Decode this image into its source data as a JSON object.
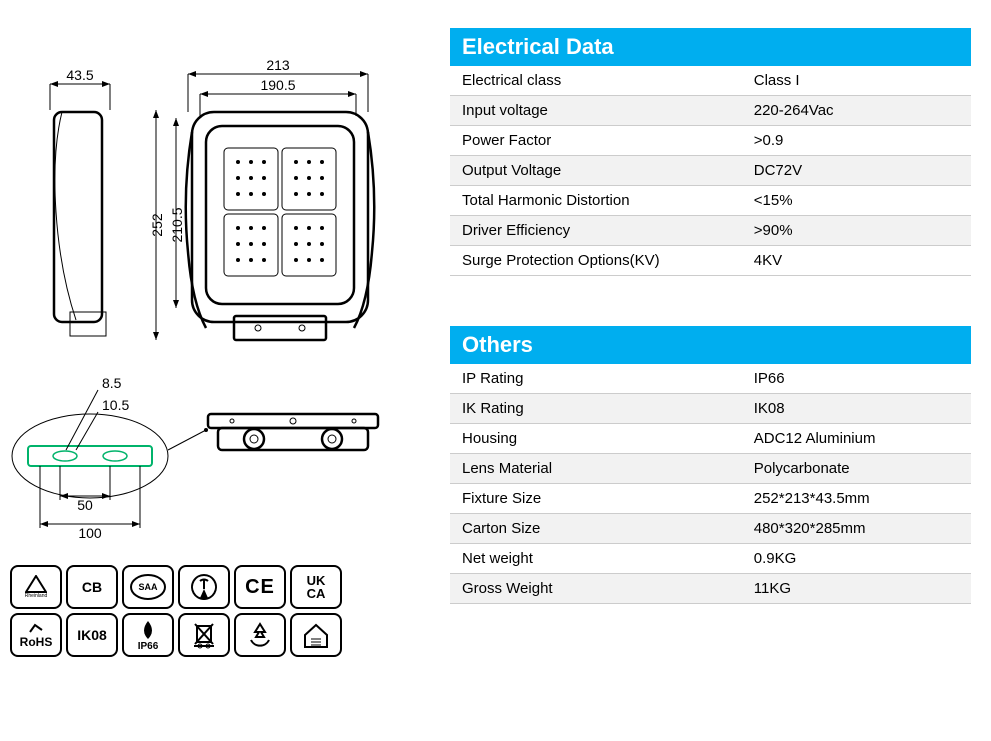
{
  "tables": {
    "electrical": {
      "title": "Electrical Data",
      "rows": [
        {
          "label": "Electrical class",
          "value": "Class I"
        },
        {
          "label": "Input voltage",
          "value": "220-264Vac"
        },
        {
          "label": "Power Factor",
          "value": ">0.9"
        },
        {
          "label": "Output Voltage",
          "value": "DC72V"
        },
        {
          "label": "Total Harmonic Distortion",
          "value": "<15%"
        },
        {
          "label": "Driver Efficiency",
          "value": ">90%"
        },
        {
          "label": "Surge Protection Options(KV)",
          "value": "4KV"
        }
      ]
    },
    "others": {
      "title": "Others",
      "rows": [
        {
          "label": "IP Rating",
          "value": "IP66"
        },
        {
          "label": "IK Rating",
          "value": "IK08"
        },
        {
          "label": "Housing",
          "value": "ADC12 Aluminium"
        },
        {
          "label": "Lens Material",
          "value": "Polycarbonate"
        },
        {
          "label": "Fixture Size",
          "value": "252*213*43.5mm"
        },
        {
          "label": "Carton Size",
          "value": "480*320*285mm"
        },
        {
          "label": "Net weight",
          "value": "0.9KG"
        },
        {
          "label": "Gross Weight",
          "value": "11KG"
        }
      ]
    }
  },
  "colors": {
    "header_bg": "#00aeef",
    "header_fg": "#ffffff",
    "row_alt_bg": "#f2f2f2",
    "border": "#cccccc",
    "drawing_accent": "#00b36b"
  },
  "dimensions": {
    "top": {
      "overall_width": "213",
      "inner_width": "190.5",
      "side_depth": "43.5",
      "overall_height": "252",
      "inner_height": "210.5"
    },
    "bracket": {
      "slot_width": "8.5",
      "slot_height": "10.5",
      "hole_pitch": "50",
      "bracket_width": "100"
    }
  },
  "certs": [
    {
      "id": "tuv",
      "label": "TÜV",
      "sub": "Rheinland"
    },
    {
      "id": "cb",
      "label": "CB"
    },
    {
      "id": "saa",
      "label": "SAA"
    },
    {
      "id": "rcm",
      "label": ""
    },
    {
      "id": "ce",
      "label": "CE"
    },
    {
      "id": "ukca",
      "label": "UK CA"
    },
    {
      "id": "rohs",
      "label": "RoHS"
    },
    {
      "id": "ik08",
      "label": "IK08"
    },
    {
      "id": "ip66",
      "label": "IP66"
    },
    {
      "id": "weee",
      "label": ""
    },
    {
      "id": "recycle",
      "label": ""
    },
    {
      "id": "house",
      "label": ""
    }
  ]
}
